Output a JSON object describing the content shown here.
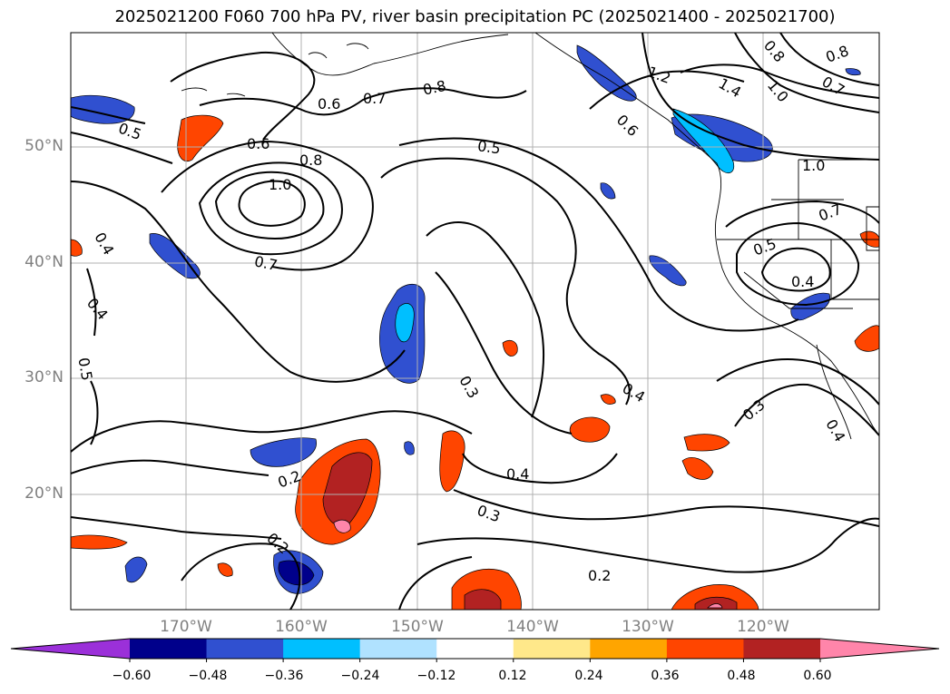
{
  "title": "2025021200 F060 700 hPa PV, river basin precipitation PC (2025021400 - 2025021700)",
  "lat_labels": [
    "50°N",
    "40°N",
    "30°N",
    "20°N"
  ],
  "lon_labels": [
    "170°W",
    "160°W",
    "150°W",
    "140°W",
    "130°W",
    "120°W"
  ],
  "contour_labels": [
    "0.5",
    "0.6",
    "0.7",
    "0.8",
    "1.0",
    "0.8",
    "0.6",
    "0.7",
    "0.5",
    "1.2",
    "1.4",
    "0.6",
    "0.8",
    "1.0",
    "0.7",
    "0.8",
    "1.0",
    "0.7",
    "0.5",
    "0.4",
    "0.4",
    "0.4",
    "0.5",
    "0.3",
    "0.4",
    "0.4",
    "0.3",
    "0.3",
    "0.4",
    "0.2",
    "0.2",
    "0.2"
  ],
  "colorbar": {
    "levels": [
      "−0.60",
      "−0.48",
      "−0.36",
      "−0.24",
      "−0.12",
      "0.12",
      "0.24",
      "0.36",
      "0.48",
      "0.60"
    ],
    "colors": [
      "#9b30d9",
      "#00008b",
      "#3050d0",
      "#00bfff",
      "#b0e2ff",
      "#ffffff",
      "#ffe88a",
      "#ffa500",
      "#ff4500",
      "#b22222",
      "#ff85aa"
    ]
  }
}
